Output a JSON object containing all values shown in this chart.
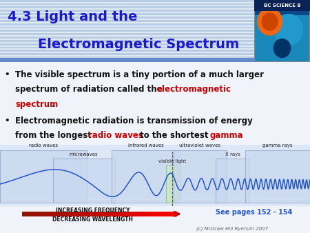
{
  "title_line1": "4.3 Light and the",
  "title_line2": "Electromagnetic Spectrum",
  "title_color": "#1a1acc",
  "title_fontsize": 14,
  "bg_color": "#f0f4fa",
  "header_bg": "#b8cce4",
  "stripe_color": "#ffffff",
  "text_color": "#111111",
  "red_color": "#cc0000",
  "text_fontsize": 8.5,
  "wave_color": "#2255cc",
  "wave_bg_light": "#d5e5f5",
  "wave_bg_dark": "#c0d4ec",
  "vis_light_color": "#b8e8b0",
  "vis_light_border": "#55aa55",
  "arrow_color": "#cc2200",
  "arrow_text1": "INCREASING FREQUENCY",
  "arrow_text2": "DECREASING WAVELENGTH",
  "see_pages": "See pages 152 - 154",
  "see_pages_color": "#2255cc",
  "copyright": "(c) McGraw Hill Ryerson 2007",
  "copyright_color": "#666666",
  "book_bg": "#1166bb",
  "book_text_color": "#ffffff"
}
